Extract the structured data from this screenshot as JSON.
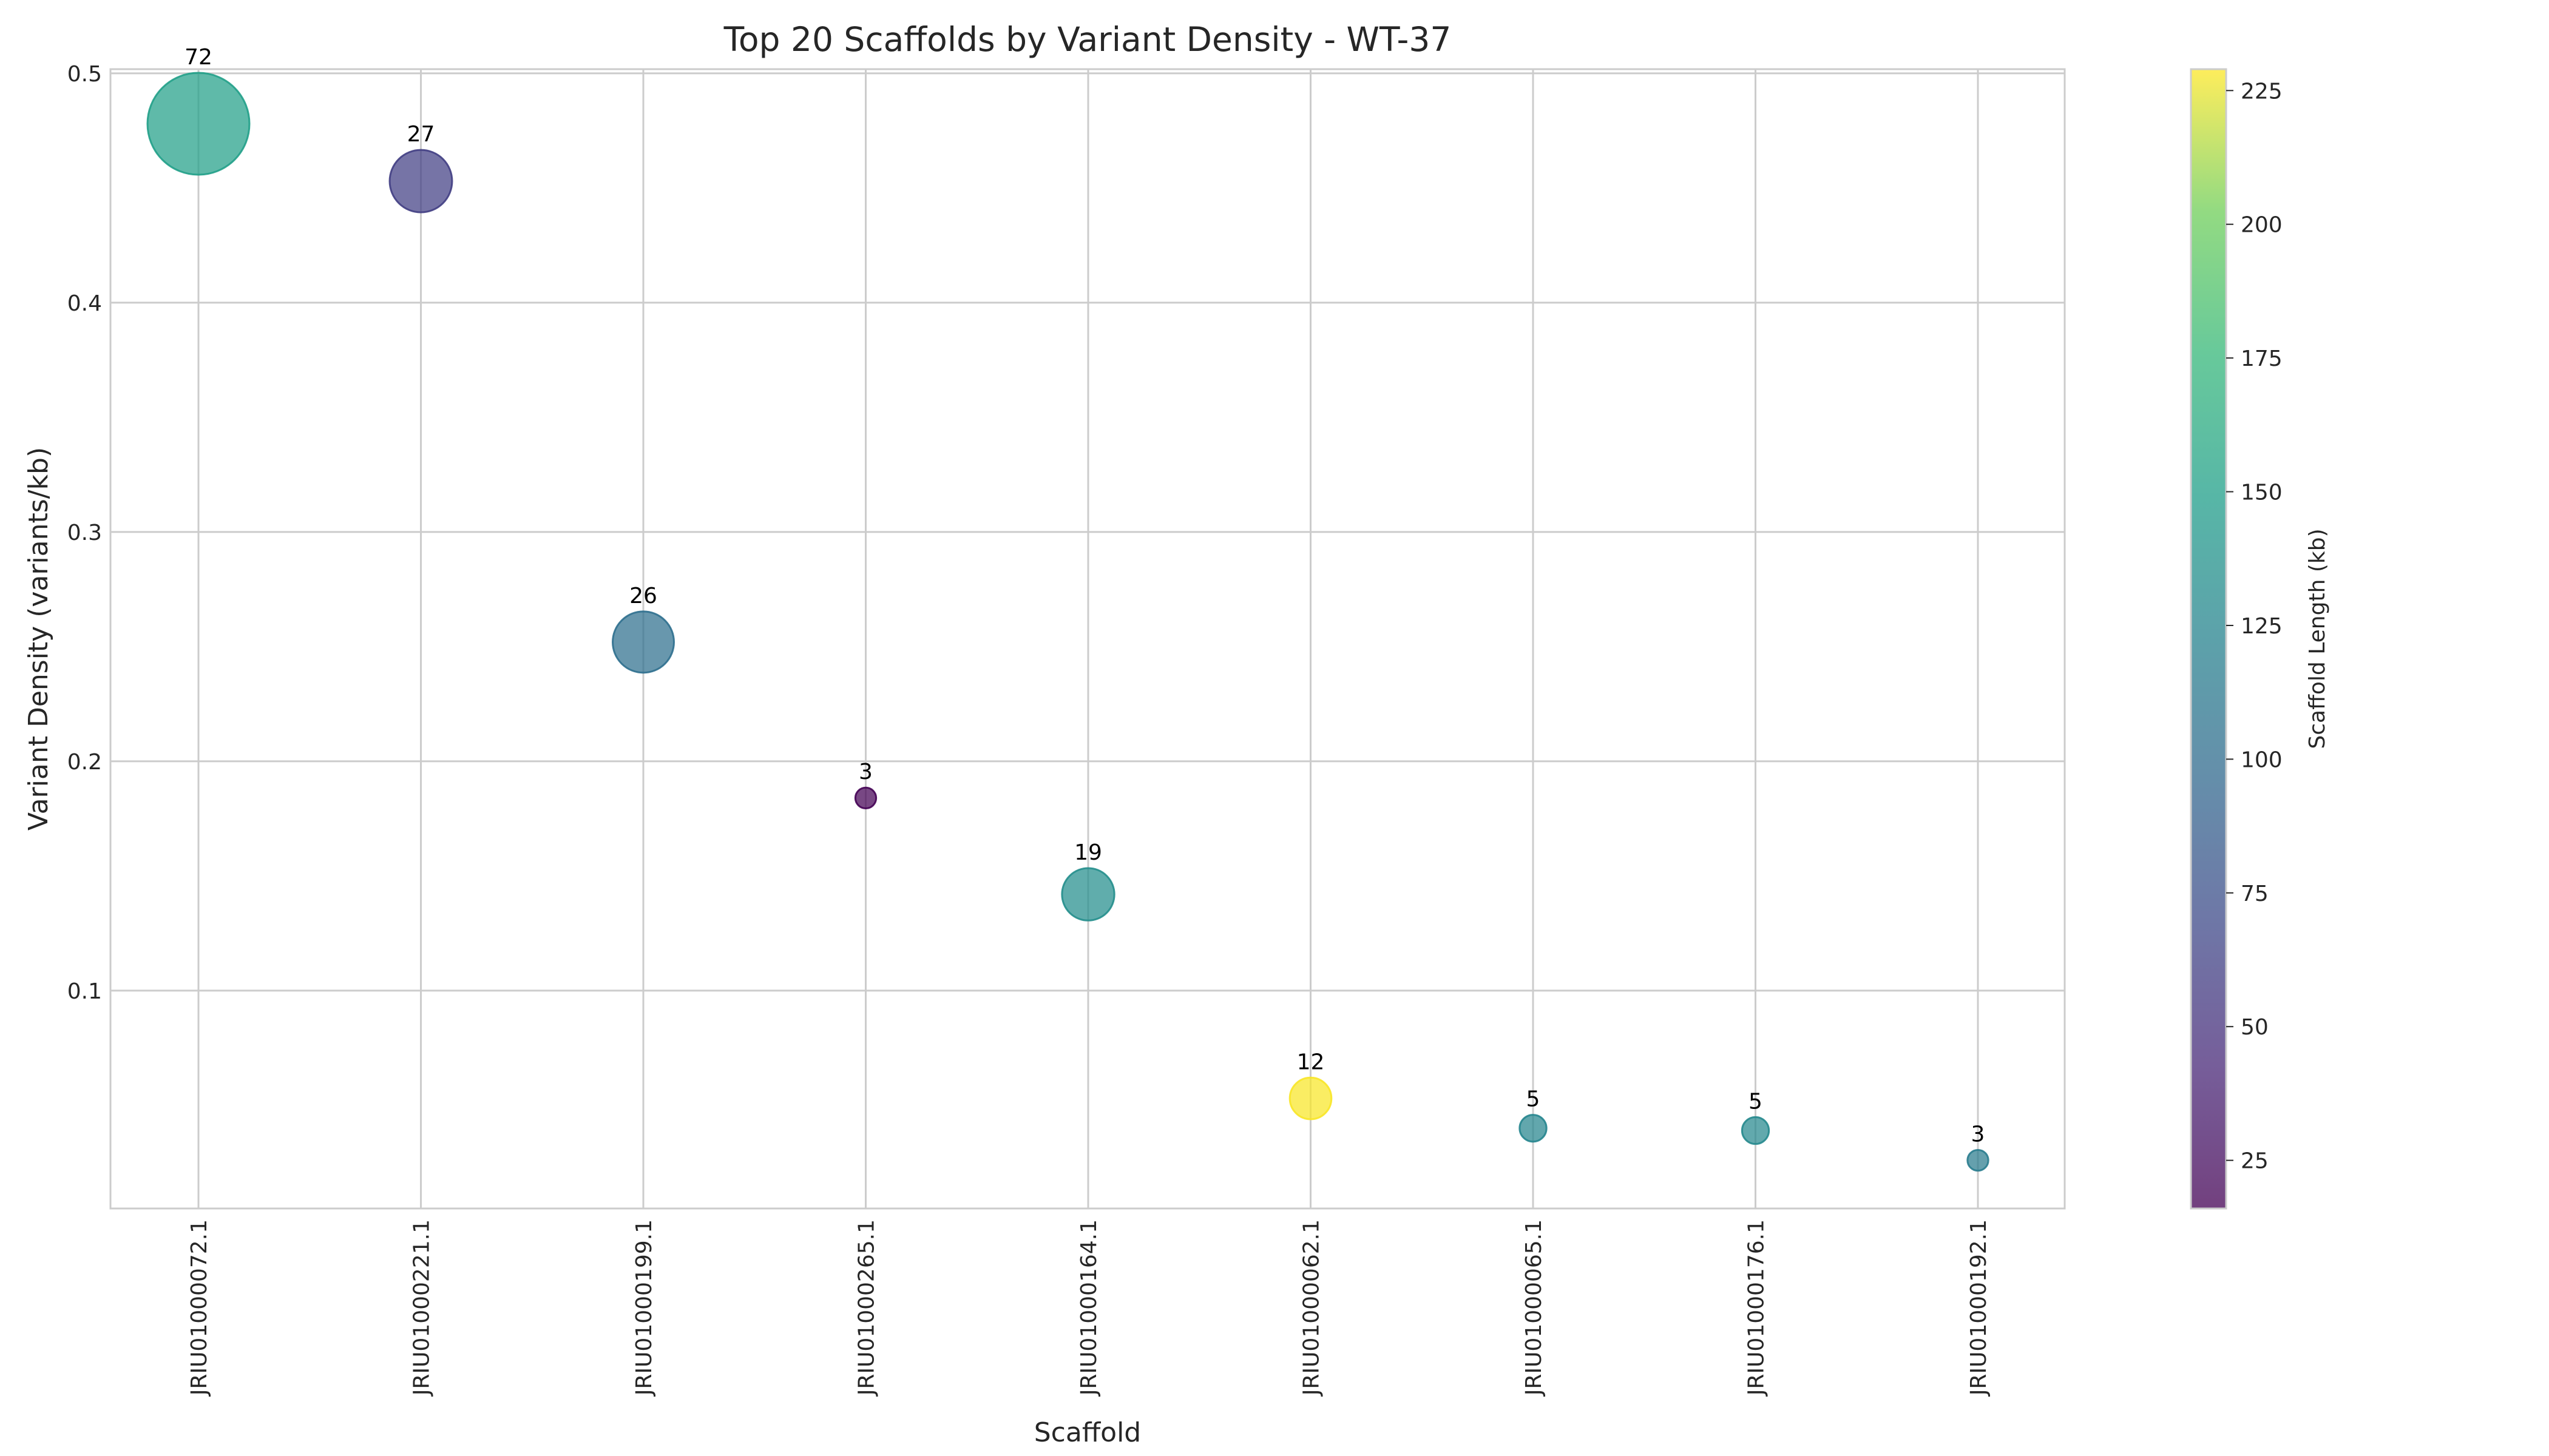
{
  "chart_data": {
    "type": "scatter",
    "title": "Top 20 Scaffolds by Variant Density - WT-37",
    "xlabel": "Scaffold",
    "ylabel": "Variant Density (variants/kb)",
    "ylim": [
      0.0,
      0.5
    ],
    "yticks": [
      0.1,
      0.2,
      0.3,
      0.4,
      0.5
    ],
    "yticks_text": [
      "0.1",
      "0.2",
      "0.3",
      "0.4",
      "0.5"
    ],
    "grid": true,
    "categories": [
      "JRIU01000072.1",
      "JRIU01000221.1",
      "JRIU01000199.1",
      "JRIU01000265.1",
      "JRIU01000164.1",
      "JRIU01000062.1",
      "JRIU01000065.1",
      "JRIU01000176.1",
      "JRIU01000192.1"
    ],
    "density": [
      0.478,
      0.453,
      0.252,
      0.184,
      0.142,
      0.053,
      0.04,
      0.039,
      0.026
    ],
    "variant_counts": [
      72,
      27,
      26,
      3,
      19,
      12,
      5,
      5,
      3
    ],
    "variant_count_labels": [
      "72",
      "27",
      "26",
      "3",
      "19",
      "12",
      "5",
      "5",
      "3"
    ],
    "scaffold_length_kb": [
      151,
      60,
      103,
      16,
      134,
      228,
      125,
      128,
      116
    ],
    "colorbar": {
      "label": "Scaffold Length (kb)",
      "colormap": "viridis",
      "range": [
        16,
        229
      ],
      "ticks": [
        25,
        50,
        75,
        100,
        125,
        150,
        175,
        200,
        225
      ],
      "ticks_text": [
        "25",
        "50",
        "75",
        "100",
        "125",
        "150",
        "175",
        "200",
        "225"
      ]
    }
  }
}
